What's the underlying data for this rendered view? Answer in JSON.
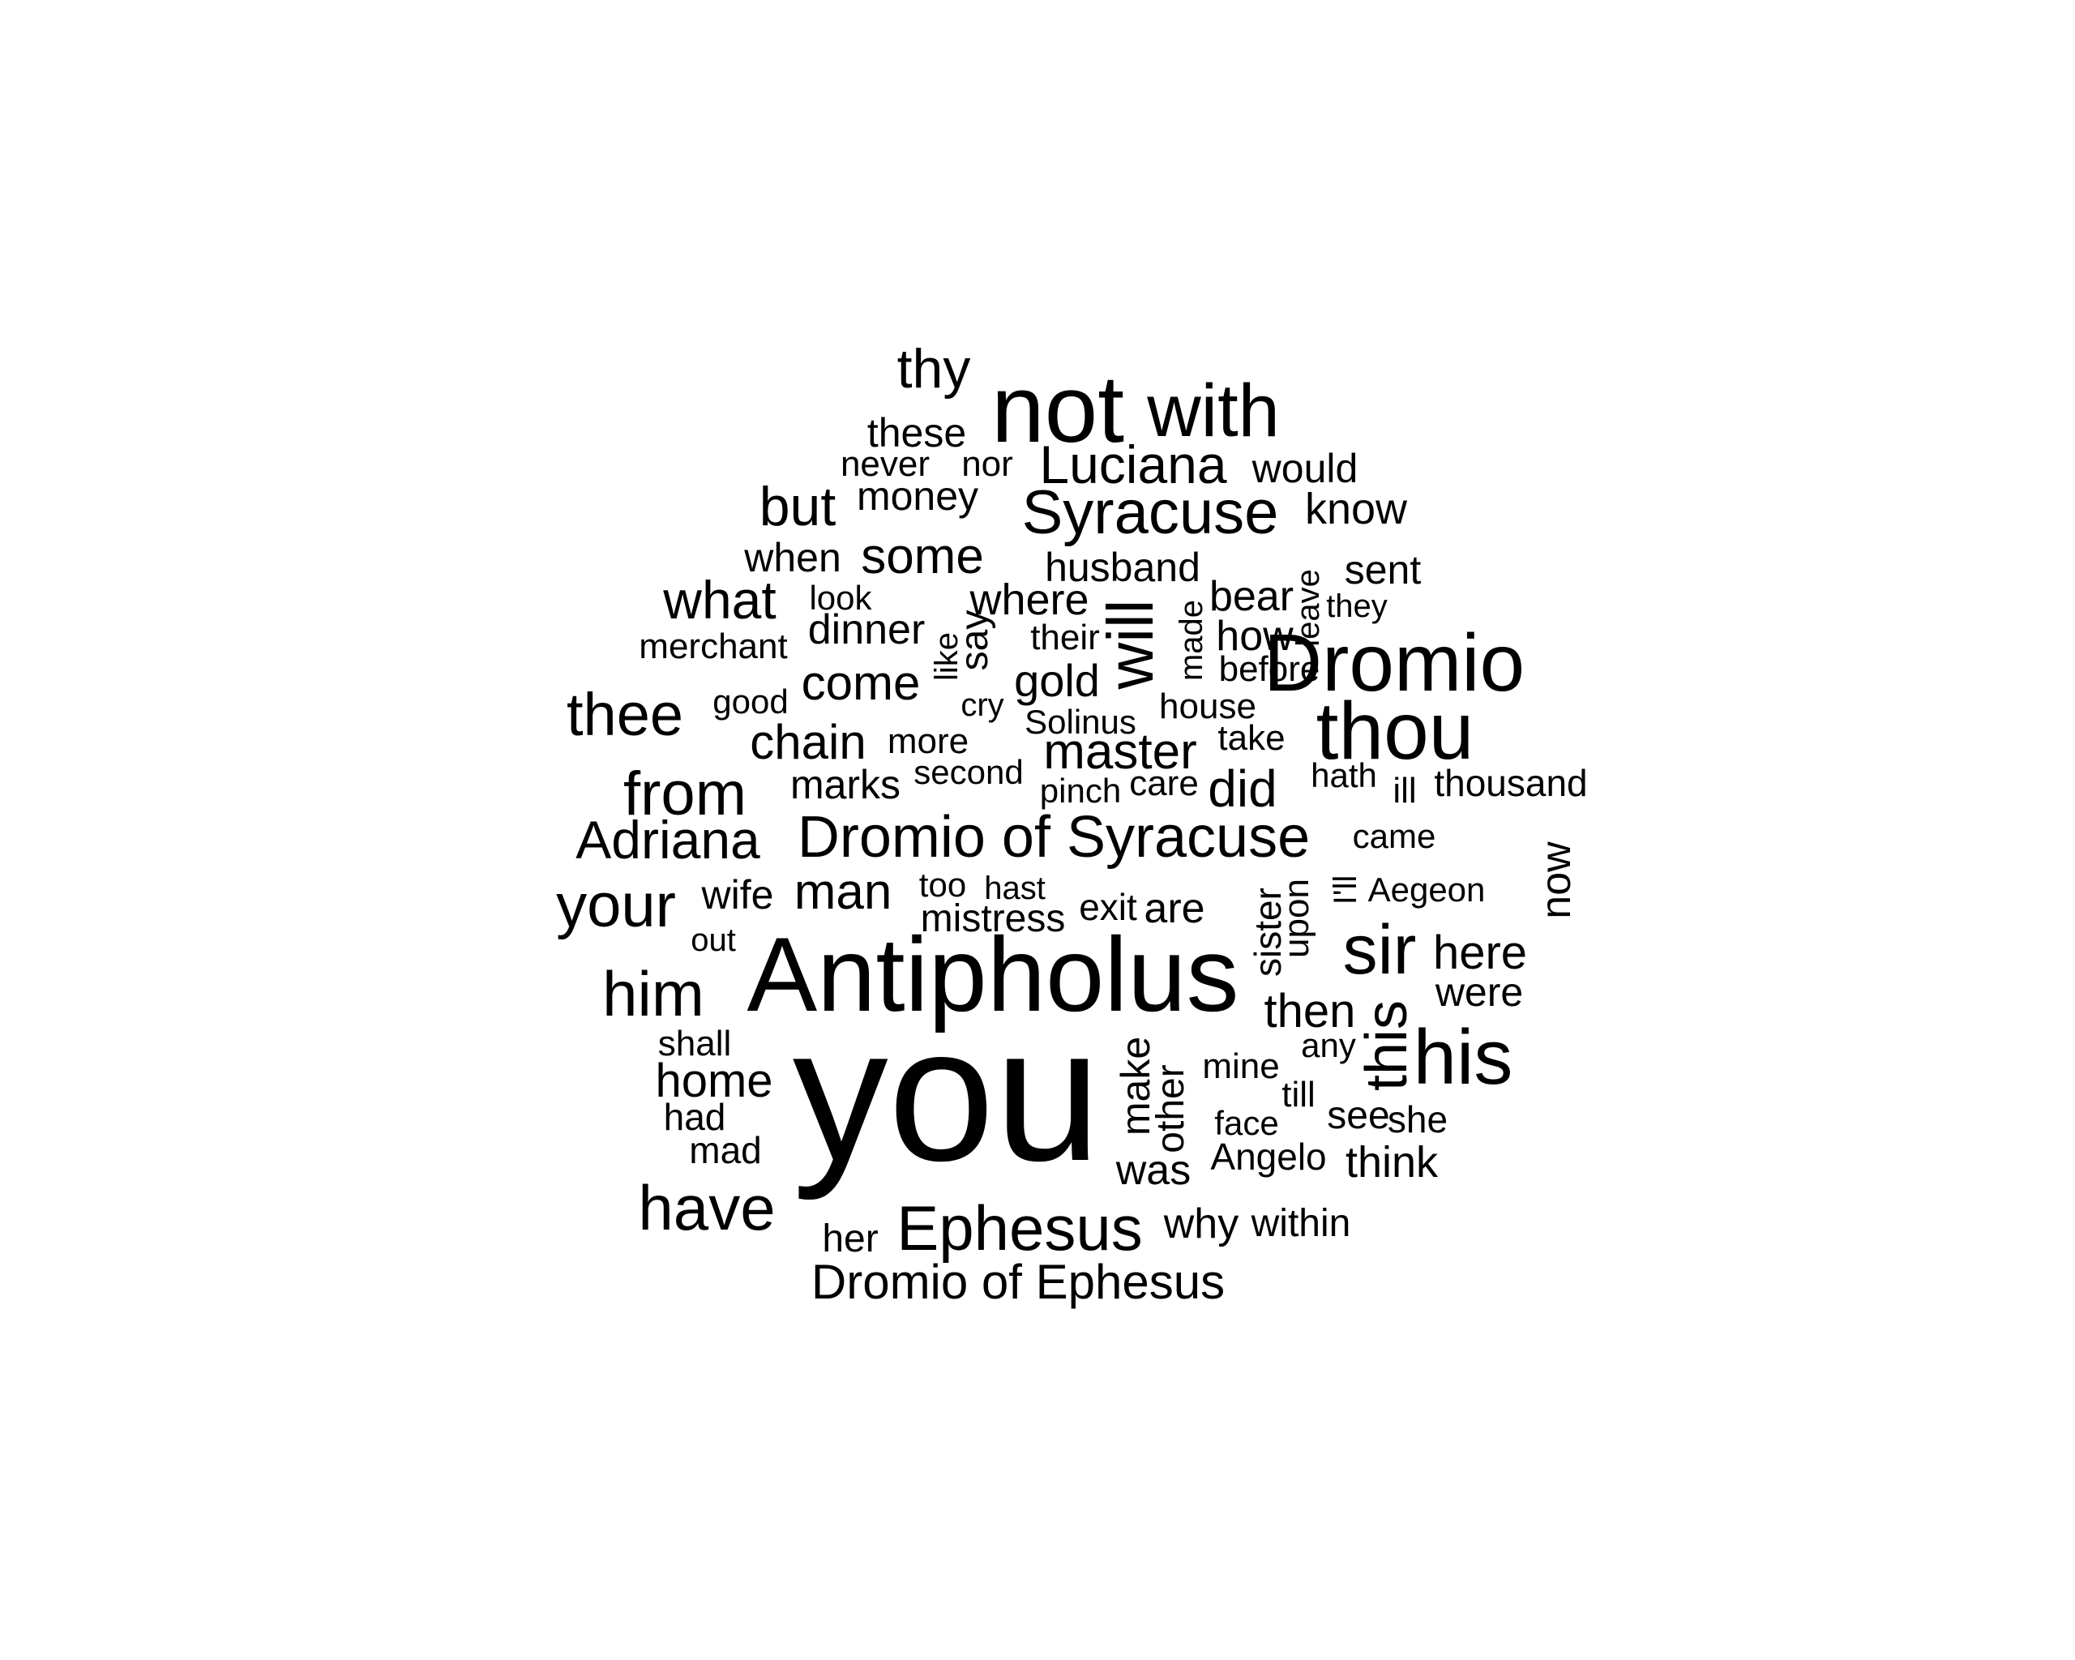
{
  "words": [
    {
      "text": "you",
      "rotated": false
    },
    {
      "text": "Antipholus",
      "rotated": false
    },
    {
      "text": "not",
      "rotated": false
    },
    {
      "text": "with",
      "rotated": false
    },
    {
      "text": "thy",
      "rotated": false
    },
    {
      "text": "these",
      "rotated": false
    },
    {
      "text": "never",
      "rotated": false
    },
    {
      "text": "nor",
      "rotated": false
    },
    {
      "text": "Luciana",
      "rotated": false
    },
    {
      "text": "would",
      "rotated": false
    },
    {
      "text": "money",
      "rotated": false
    },
    {
      "text": "but",
      "rotated": false
    },
    {
      "text": "Syracuse",
      "rotated": false
    },
    {
      "text": "know",
      "rotated": false
    },
    {
      "text": "when",
      "rotated": false
    },
    {
      "text": "some",
      "rotated": false
    },
    {
      "text": "husband",
      "rotated": false
    },
    {
      "text": "sent",
      "rotated": false
    },
    {
      "text": "what",
      "rotated": false
    },
    {
      "text": "look",
      "rotated": false
    },
    {
      "text": "where",
      "rotated": false
    },
    {
      "text": "will",
      "rotated": true
    },
    {
      "text": "bear",
      "rotated": false
    },
    {
      "text": "leave",
      "rotated": true
    },
    {
      "text": "they",
      "rotated": false
    },
    {
      "text": "dinner",
      "rotated": false
    },
    {
      "text": "made",
      "rotated": true
    },
    {
      "text": "how",
      "rotated": false
    },
    {
      "text": "merchant",
      "rotated": false
    },
    {
      "text": "like",
      "rotated": true
    },
    {
      "text": "say",
      "rotated": true
    },
    {
      "text": "their",
      "rotated": false
    },
    {
      "text": "Dromio",
      "rotated": false
    },
    {
      "text": "before",
      "rotated": false
    },
    {
      "text": "come",
      "rotated": false
    },
    {
      "text": "gold",
      "rotated": false
    },
    {
      "text": "thee",
      "rotated": false
    },
    {
      "text": "good",
      "rotated": false
    },
    {
      "text": "cry",
      "rotated": false
    },
    {
      "text": "house",
      "rotated": false
    },
    {
      "text": "thou",
      "rotated": false
    },
    {
      "text": "Solinus",
      "rotated": false
    },
    {
      "text": "chain",
      "rotated": false
    },
    {
      "text": "more",
      "rotated": false
    },
    {
      "text": "master",
      "rotated": false
    },
    {
      "text": "take",
      "rotated": false
    },
    {
      "text": "second",
      "rotated": false
    },
    {
      "text": "hath",
      "rotated": false
    },
    {
      "text": "thousand",
      "rotated": false
    },
    {
      "text": "from",
      "rotated": false
    },
    {
      "text": "marks",
      "rotated": false
    },
    {
      "text": "pinch",
      "rotated": false
    },
    {
      "text": "care",
      "rotated": false
    },
    {
      "text": "did",
      "rotated": false
    },
    {
      "text": "ill",
      "rotated": false
    },
    {
      "text": "Adriana",
      "rotated": false
    },
    {
      "text": "Dromio of Syracuse",
      "rotated": false
    },
    {
      "text": "came",
      "rotated": false
    },
    {
      "text": "now",
      "rotated": true
    },
    {
      "text": "your",
      "rotated": false
    },
    {
      "text": "wife",
      "rotated": false
    },
    {
      "text": "man",
      "rotated": false
    },
    {
      "text": "too",
      "rotated": false
    },
    {
      "text": "hast",
      "rotated": false
    },
    {
      "text": "sister",
      "rotated": true
    },
    {
      "text": "upon",
      "rotated": true
    },
    {
      "text": "I'll",
      "rotated": true
    },
    {
      "text": "Aegeon",
      "rotated": false
    },
    {
      "text": "mistress",
      "rotated": false
    },
    {
      "text": "exit",
      "rotated": false
    },
    {
      "text": "are",
      "rotated": false
    },
    {
      "text": "out",
      "rotated": false
    },
    {
      "text": "sir",
      "rotated": false
    },
    {
      "text": "here",
      "rotated": false
    },
    {
      "text": "him",
      "rotated": false
    },
    {
      "text": "were",
      "rotated": false
    },
    {
      "text": "then",
      "rotated": false
    },
    {
      "text": "this",
      "rotated": true
    },
    {
      "text": "his",
      "rotated": false
    },
    {
      "text": "shall",
      "rotated": false
    },
    {
      "text": "any",
      "rotated": false
    },
    {
      "text": "home",
      "rotated": false
    },
    {
      "text": "make",
      "rotated": true
    },
    {
      "text": "mine",
      "rotated": false
    },
    {
      "text": "other",
      "rotated": true
    },
    {
      "text": "till",
      "rotated": false
    },
    {
      "text": "had",
      "rotated": false
    },
    {
      "text": "see",
      "rotated": false
    },
    {
      "text": "she",
      "rotated": false
    },
    {
      "text": "face",
      "rotated": false
    },
    {
      "text": "mad",
      "rotated": false
    },
    {
      "text": "Angelo",
      "rotated": false
    },
    {
      "text": "think",
      "rotated": false
    },
    {
      "text": "was",
      "rotated": false
    },
    {
      "text": "have",
      "rotated": false
    },
    {
      "text": "Ephesus",
      "rotated": false
    },
    {
      "text": "why",
      "rotated": false
    },
    {
      "text": "within",
      "rotated": false
    },
    {
      "text": "her",
      "rotated": false
    },
    {
      "text": "Dromio of Ephesus",
      "rotated": false
    }
  ]
}
